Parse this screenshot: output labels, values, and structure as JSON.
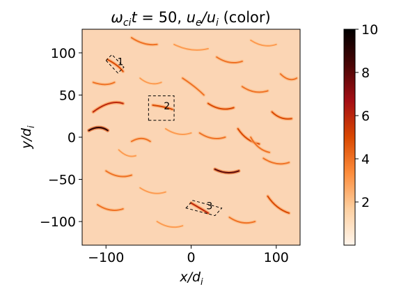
{
  "chart_data": {
    "type": "heatmap",
    "title": "$\\omega_{ci}t = 50, u_e/u_i$ (color)",
    "title_display": "ωcit = 50, ue/ui (color)",
    "xlabel": "x/d_i",
    "ylabel": "y/d_i",
    "xlim": [
      -128,
      128
    ],
    "ylim": [
      -128,
      128
    ],
    "xticks": [
      -100,
      0,
      100
    ],
    "xtick_labels": [
      "−100",
      "0",
      "100"
    ],
    "yticks": [
      -100,
      -50,
      0,
      50,
      100
    ],
    "ytick_labels": [
      "−100",
      "−50",
      "0",
      "50",
      "100"
    ],
    "colorbar": {
      "min": 0,
      "max": 10,
      "ticks": [
        2,
        4,
        6,
        8,
        10
      ],
      "tick_labels": [
        "2",
        "4",
        "6",
        "8",
        "10"
      ],
      "colormap": [
        "#fff5eb",
        "#fdd0a2",
        "#fd8d3c",
        "#d94801",
        "#a50f15",
        "#4a0606",
        "#000000"
      ]
    },
    "background_color": "#fbd5b4",
    "boxes": [
      {
        "label": "1",
        "corners": [
          [
            -100,
            91
          ],
          [
            -93,
            98
          ],
          [
            -79,
            83
          ],
          [
            -86,
            76
          ]
        ]
      },
      {
        "label": "2",
        "corners": [
          [
            -50,
            20
          ],
          [
            -20,
            20
          ],
          [
            -20,
            49
          ],
          [
            -50,
            49
          ]
        ]
      },
      {
        "label": "3",
        "corners": [
          [
            -6,
            -84
          ],
          [
            2,
            -75
          ],
          [
            36,
            -84
          ],
          [
            28,
            -93
          ]
        ]
      }
    ],
    "streaks": [
      {
        "pts": [
          [
            -115,
            30
          ],
          [
            -95,
            45
          ],
          [
            -80,
            40
          ]
        ],
        "v": 6
      },
      {
        "pts": [
          [
            -120,
            8
          ],
          [
            -108,
            15
          ],
          [
            -98,
            8
          ]
        ],
        "v": 9
      },
      {
        "pts": [
          [
            -45,
            38
          ],
          [
            -30,
            36
          ],
          [
            -22,
            33
          ]
        ],
        "v": 5
      },
      {
        "pts": [
          [
            -98,
            92
          ],
          [
            -85,
            85
          ],
          [
            -80,
            78
          ]
        ],
        "v": 5
      },
      {
        "pts": [
          [
            -70,
            118
          ],
          [
            -55,
            108
          ],
          [
            -40,
            110
          ]
        ],
        "v": 4
      },
      {
        "pts": [
          [
            -20,
            110
          ],
          [
            0,
            100
          ],
          [
            20,
            105
          ]
        ],
        "v": 3
      },
      {
        "pts": [
          [
            30,
            95
          ],
          [
            45,
            85
          ],
          [
            60,
            90
          ]
        ],
        "v": 4
      },
      {
        "pts": [
          [
            70,
            115
          ],
          [
            85,
            105
          ],
          [
            100,
            110
          ]
        ],
        "v": 3
      },
      {
        "pts": [
          [
            -10,
            70
          ],
          [
            5,
            60
          ],
          [
            15,
            50
          ]
        ],
        "v": 4
      },
      {
        "pts": [
          [
            20,
            40
          ],
          [
            35,
            30
          ],
          [
            50,
            35
          ]
        ],
        "v": 5
      },
      {
        "pts": [
          [
            60,
            60
          ],
          [
            75,
            50
          ],
          [
            90,
            55
          ]
        ],
        "v": 4
      },
      {
        "pts": [
          [
            95,
            30
          ],
          [
            105,
            20
          ],
          [
            118,
            22
          ]
        ],
        "v": 5
      },
      {
        "pts": [
          [
            -70,
            -5
          ],
          [
            -58,
            2
          ],
          [
            -48,
            -5
          ]
        ],
        "v": 4
      },
      {
        "pts": [
          [
            -30,
            10
          ],
          [
            -15,
            0
          ],
          [
            0,
            5
          ]
        ],
        "v": 3
      },
      {
        "pts": [
          [
            10,
            5
          ],
          [
            25,
            -5
          ],
          [
            40,
            0
          ]
        ],
        "v": 4
      },
      {
        "pts": [
          [
            55,
            10
          ],
          [
            65,
            -5
          ],
          [
            80,
            -8
          ]
        ],
        "v": 5
      },
      {
        "pts": [
          [
            28,
            -38
          ],
          [
            42,
            -45
          ],
          [
            56,
            -40
          ]
        ],
        "v": 8
      },
      {
        "pts": [
          [
            85,
            -25
          ],
          [
            100,
            -35
          ],
          [
            115,
            -30
          ]
        ],
        "v": 4
      },
      {
        "pts": [
          [
            -100,
            -40
          ],
          [
            -85,
            -50
          ],
          [
            -70,
            -45
          ]
        ],
        "v": 4
      },
      {
        "pts": [
          [
            -60,
            -60
          ],
          [
            -45,
            -70
          ],
          [
            -30,
            -65
          ]
        ],
        "v": 3
      },
      {
        "pts": [
          [
            -110,
            -80
          ],
          [
            -95,
            -90
          ],
          [
            -80,
            -85
          ]
        ],
        "v": 4
      },
      {
        "pts": [
          [
            0,
            -78
          ],
          [
            12,
            -85
          ],
          [
            20,
            -90
          ]
        ],
        "v": 6
      },
      {
        "pts": [
          [
            45,
            -95
          ],
          [
            60,
            -105
          ],
          [
            75,
            -100
          ]
        ],
        "v": 4
      },
      {
        "pts": [
          [
            90,
            -70
          ],
          [
            100,
            -85
          ],
          [
            115,
            -90
          ]
        ],
        "v": 5
      },
      {
        "pts": [
          [
            -40,
            -100
          ],
          [
            -25,
            -110
          ],
          [
            -10,
            -105
          ]
        ],
        "v": 3
      },
      {
        "pts": [
          [
            -115,
            65
          ],
          [
            -100,
            60
          ],
          [
            -90,
            65
          ]
        ],
        "v": 4
      },
      {
        "pts": [
          [
            -60,
            70
          ],
          [
            -48,
            60
          ],
          [
            -35,
            65
          ]
        ],
        "v": 3
      },
      {
        "pts": [
          [
            70,
            0
          ],
          [
            78,
            -15
          ],
          [
            92,
            -18
          ]
        ],
        "v": 4
      },
      {
        "pts": [
          [
            -85,
            -15
          ],
          [
            -75,
            -25
          ],
          [
            -65,
            -22
          ]
        ],
        "v": 3
      },
      {
        "pts": [
          [
            105,
            75
          ],
          [
            115,
            65
          ],
          [
            124,
            70
          ]
        ],
        "v": 4
      }
    ]
  }
}
